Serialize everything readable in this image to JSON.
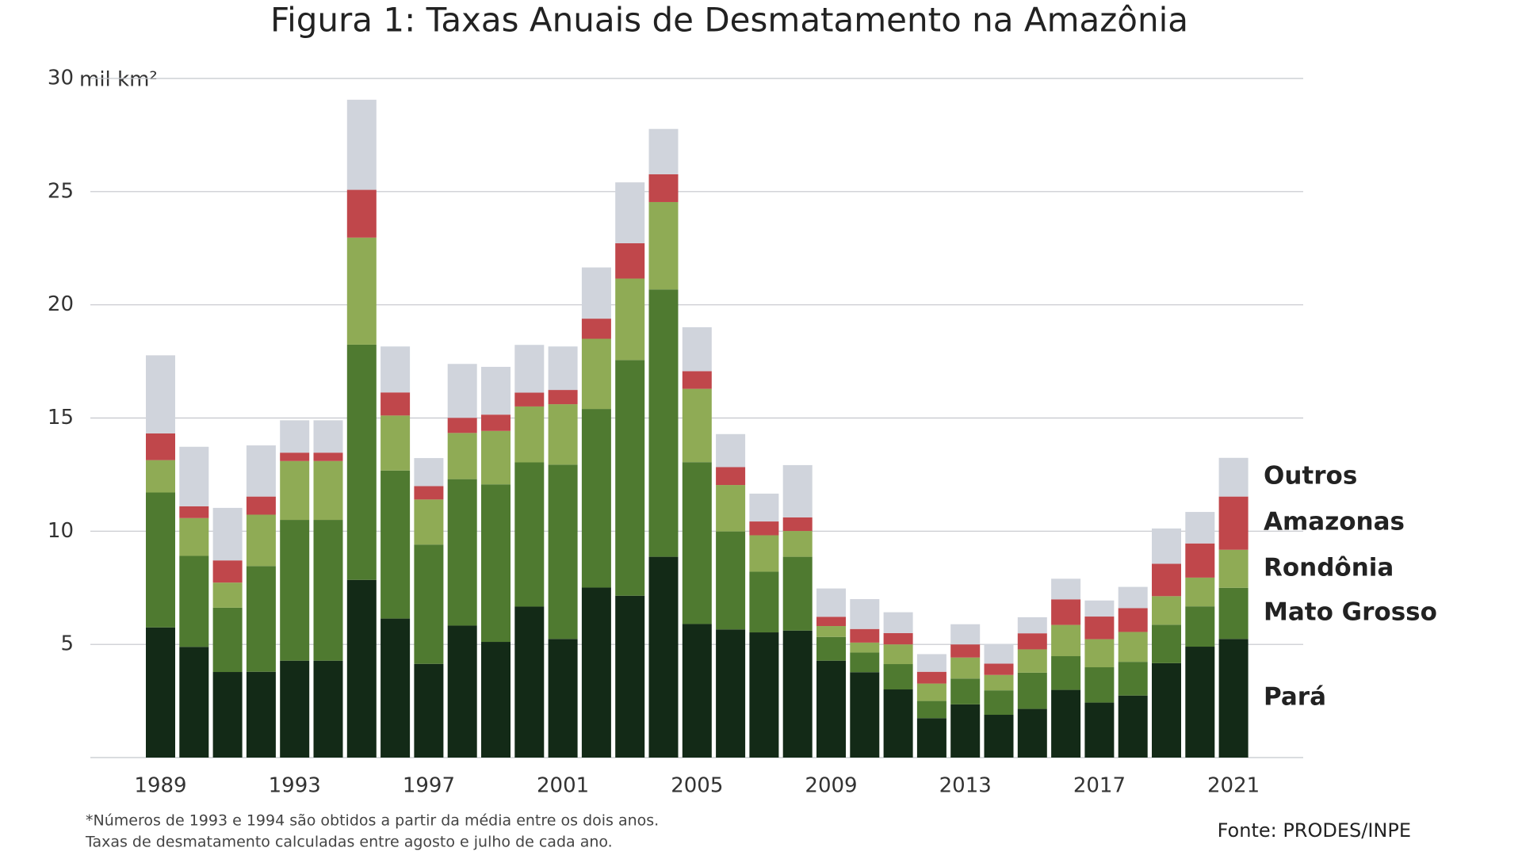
{
  "chart_data": {
    "type": "stacked_bar",
    "title": "Figura 1: Taxas Anuais de Desmatamento na Amazônia",
    "y_axis_label": "mil km²",
    "categories": [
      "1989",
      null,
      null,
      null,
      "1993",
      null,
      null,
      null,
      "1997",
      null,
      null,
      null,
      "2001",
      null,
      null,
      null,
      "2005",
      null,
      null,
      null,
      "2009",
      null,
      null,
      null,
      "2013",
      null,
      null,
      null,
      "2017",
      null,
      null,
      null,
      "2021"
    ],
    "series": [
      {
        "name": "Pará",
        "color": "#132a17",
        "values": [
          5.75,
          4.89,
          3.78,
          3.79,
          4.28,
          4.28,
          7.85,
          6.14,
          4.14,
          5.83,
          5.11,
          6.67,
          5.24,
          7.51,
          7.15,
          8.87,
          5.9,
          5.66,
          5.53,
          5.61,
          4.28,
          3.77,
          3.01,
          1.74,
          2.35,
          1.89,
          2.15,
          2.99,
          2.43,
          2.74,
          4.17,
          4.9,
          5.24
        ]
      },
      {
        "name": "Mato Grosso",
        "color": "#4f7a30",
        "values": [
          5.96,
          4.02,
          2.84,
          4.67,
          6.22,
          6.22,
          10.39,
          6.54,
          5.27,
          6.47,
          6.96,
          6.37,
          7.7,
          7.89,
          10.41,
          11.81,
          7.15,
          4.33,
          2.68,
          3.26,
          1.05,
          0.87,
          1.12,
          0.76,
          1.14,
          1.08,
          1.6,
          1.49,
          1.56,
          1.49,
          1.7,
          1.78,
          2.26
        ]
      },
      {
        "name": "Rondônia",
        "color": "#8fab55",
        "values": [
          1.43,
          1.67,
          1.11,
          2.27,
          2.6,
          2.6,
          4.73,
          2.43,
          1.99,
          2.04,
          2.36,
          2.47,
          2.67,
          3.1,
          3.6,
          3.86,
          3.24,
          2.05,
          1.61,
          1.14,
          0.48,
          0.44,
          0.87,
          0.77,
          0.93,
          0.68,
          1.03,
          1.38,
          1.24,
          1.32,
          1.26,
          1.27,
          1.68
        ]
      },
      {
        "name": "Amazonas",
        "color": "#c0474b",
        "values": [
          1.18,
          0.52,
          0.98,
          0.8,
          0.37,
          0.37,
          2.11,
          1.02,
          0.59,
          0.67,
          0.72,
          0.61,
          0.63,
          0.89,
          1.56,
          1.23,
          0.78,
          0.79,
          0.61,
          0.6,
          0.41,
          0.6,
          0.5,
          0.52,
          0.58,
          0.5,
          0.71,
          1.13,
          1.0,
          1.05,
          1.43,
          1.51,
          2.35
        ]
      },
      {
        "name": "Outros",
        "color": "#d0d4dc",
        "label_color": "#a6a8ab",
        "values": [
          3.45,
          2.63,
          2.32,
          2.26,
          1.43,
          1.43,
          3.98,
          2.03,
          1.24,
          2.38,
          2.11,
          2.11,
          1.92,
          2.26,
          2.69,
          2.0,
          1.94,
          1.46,
          1.23,
          2.31,
          1.25,
          1.32,
          0.92,
          0.78,
          0.89,
          0.87,
          0.71,
          0.91,
          0.71,
          0.94,
          1.56,
          1.39,
          1.71
        ]
      }
    ],
    "ylim": [
      0,
      30
    ],
    "yticks": [
      5,
      10,
      15,
      20,
      25,
      30
    ],
    "grid": true,
    "footnotes": [
      "*Números de 1993 e 1994 são obtidos a partir da média entre os dois anos.",
      "Taxas de desmatamento calculadas entre agosto e julho de cada ano."
    ],
    "source": "Fonte: PRODES/INPE"
  }
}
